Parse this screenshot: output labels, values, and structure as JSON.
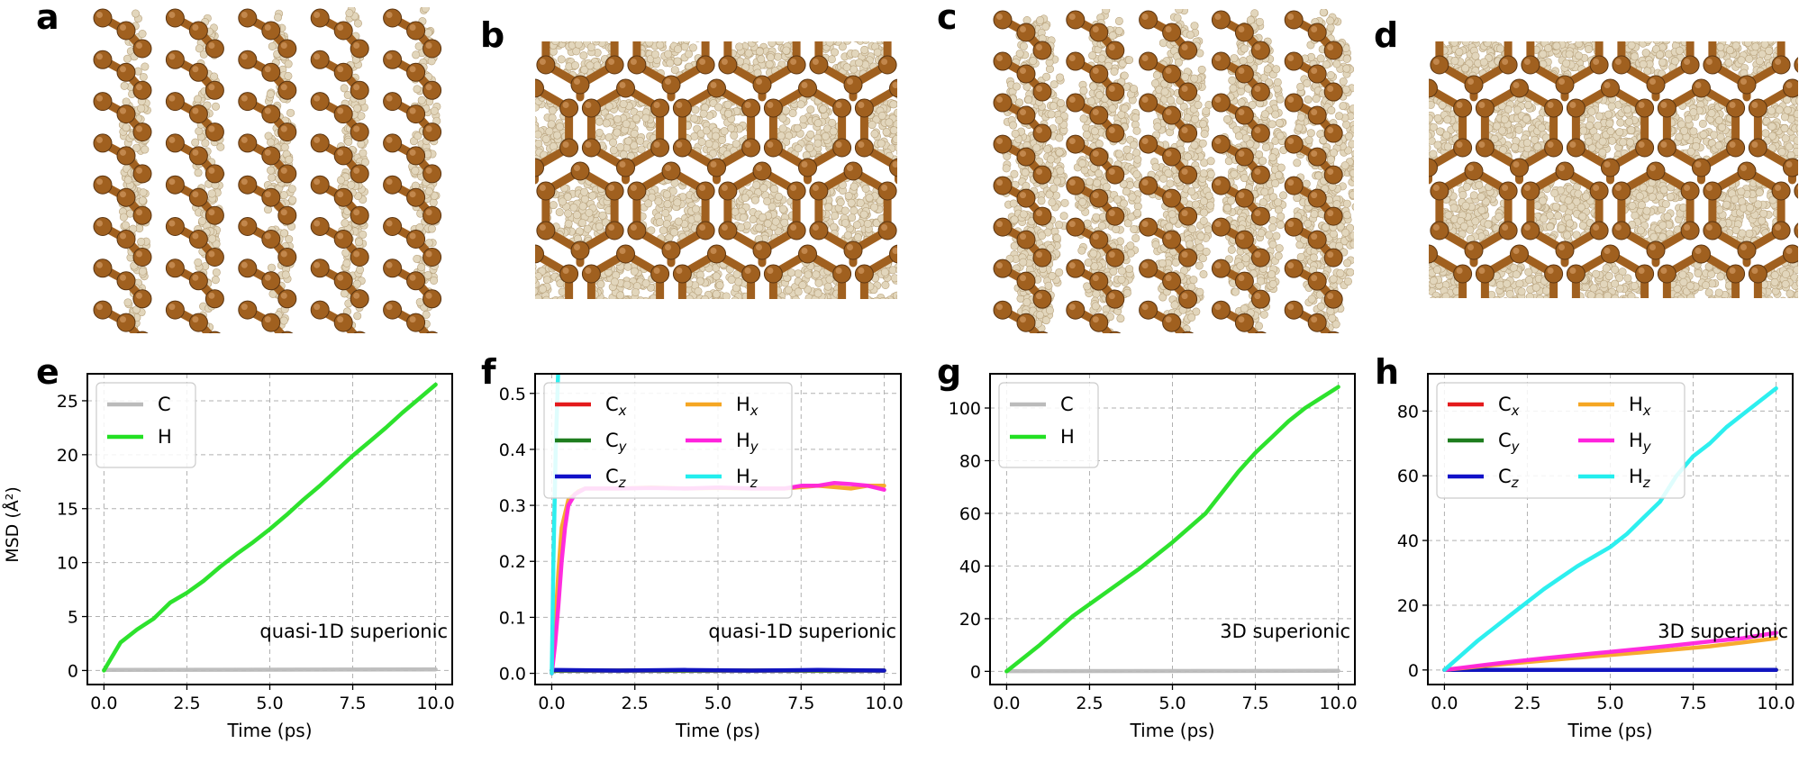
{
  "panels": {
    "a": "a",
    "b": "b",
    "c": "c",
    "d": "d",
    "e": "e",
    "f": "f",
    "g": "g",
    "h": "h"
  },
  "colors": {
    "carbon": "#a0601f",
    "hydrogen": "#e2d6bc",
    "C": "#bbbbbb",
    "H": "#22e022",
    "Cx": "#e41a1c",
    "Cy": "#1e7d1e",
    "Cz": "#1010c8",
    "Hx": "#f5a623",
    "Hy": "#ff22dd",
    "Hz": "#22eeee"
  },
  "chart_data": [
    {
      "id": "e",
      "type": "line",
      "xlabel": "Time (ps)",
      "ylabel": "MSD (Å²)",
      "xlim": [
        -0.5,
        10.5
      ],
      "ylim": [
        -1.3,
        27.5
      ],
      "xticks": [
        "0.0",
        "2.5",
        "5.0",
        "7.5",
        "10.0"
      ],
      "yticks": [
        "0",
        "5",
        "10",
        "15",
        "20",
        "25"
      ],
      "annotation": "quasi-1D superionic",
      "legend": "top-left",
      "legend_cols": 1,
      "series": [
        {
          "name": "C",
          "color_key": "C",
          "x": [
            0,
            10
          ],
          "y": [
            0.05,
            0.1
          ]
        },
        {
          "name": "H",
          "color_key": "H",
          "x": [
            0,
            0.5,
            1,
            1.5,
            2,
            2.5,
            3,
            3.5,
            4,
            4.5,
            5,
            5.5,
            6,
            6.5,
            7,
            7.5,
            8,
            8.5,
            9,
            9.5,
            10
          ],
          "y": [
            0,
            2.6,
            3.8,
            4.8,
            6.3,
            7.2,
            8.3,
            9.6,
            10.8,
            11.9,
            13.1,
            14.4,
            15.8,
            17.1,
            18.5,
            19.9,
            21.2,
            22.5,
            23.9,
            25.2,
            26.5
          ]
        }
      ]
    },
    {
      "id": "f",
      "type": "line",
      "xlabel": "Time (ps)",
      "ylabel": "",
      "xlim": [
        -0.5,
        10.5
      ],
      "ylim": [
        -0.02,
        0.535
      ],
      "xticks": [
        "0.0",
        "2.5",
        "5.0",
        "7.5",
        "10.0"
      ],
      "yticks": [
        "0.0",
        "0.1",
        "0.2",
        "0.3",
        "0.4",
        "0.5"
      ],
      "annotation": "quasi-1D superionic",
      "legend": "top-left",
      "legend_cols": 2,
      "series": [
        {
          "name": "C",
          "sub": "x",
          "color_key": "Cx",
          "x": [
            0,
            10
          ],
          "y": [
            0.005,
            0.005
          ]
        },
        {
          "name": "C",
          "sub": "y",
          "color_key": "Cy",
          "x": [
            0,
            10
          ],
          "y": [
            0.005,
            0.005
          ]
        },
        {
          "name": "C",
          "sub": "z",
          "color_key": "Cz",
          "x": [
            0,
            2,
            4,
            6,
            8,
            10
          ],
          "y": [
            0.006,
            0.005,
            0.006,
            0.005,
            0.006,
            0.005
          ]
        },
        {
          "name": "H",
          "sub": "x",
          "color_key": "Hx",
          "x": [
            0,
            0.1,
            0.2,
            0.3,
            0.5,
            0.8,
            1,
            2,
            3,
            4,
            5,
            6,
            7,
            8,
            9,
            9.5,
            10
          ],
          "y": [
            0,
            0.08,
            0.18,
            0.26,
            0.31,
            0.325,
            0.33,
            0.33,
            0.332,
            0.33,
            0.331,
            0.33,
            0.33,
            0.335,
            0.33,
            0.335,
            0.335
          ]
        },
        {
          "name": "H",
          "sub": "y",
          "color_key": "Hy",
          "x": [
            0,
            0.1,
            0.2,
            0.3,
            0.4,
            0.5,
            0.7,
            1,
            2,
            3,
            4,
            5,
            6,
            7,
            7.5,
            8,
            8.5,
            9,
            9.5,
            10
          ],
          "y": [
            0,
            0.05,
            0.12,
            0.2,
            0.26,
            0.3,
            0.32,
            0.33,
            0.33,
            0.331,
            0.33,
            0.332,
            0.33,
            0.33,
            0.335,
            0.335,
            0.34,
            0.338,
            0.335,
            0.328
          ]
        },
        {
          "name": "H",
          "sub": "z",
          "color_key": "Hz",
          "x": [
            0,
            0.05,
            0.12,
            0.2,
            0.25
          ],
          "y": [
            0,
            0.2,
            0.4,
            0.55,
            0.6
          ]
        }
      ]
    },
    {
      "id": "g",
      "type": "line",
      "xlabel": "Time (ps)",
      "ylabel": "",
      "xlim": [
        -0.5,
        10.5
      ],
      "ylim": [
        -5,
        113
      ],
      "xticks": [
        "0.0",
        "2.5",
        "5.0",
        "7.5",
        "10.0"
      ],
      "yticks": [
        "0",
        "20",
        "40",
        "60",
        "80",
        "100"
      ],
      "annotation": "3D superionic",
      "legend": "top-left",
      "legend_cols": 1,
      "series": [
        {
          "name": "C",
          "color_key": "C",
          "x": [
            0,
            10
          ],
          "y": [
            0.1,
            0.2
          ]
        },
        {
          "name": "H",
          "color_key": "H",
          "x": [
            0,
            1,
            2,
            3,
            4,
            5,
            6,
            6.5,
            7,
            7.5,
            8,
            8.5,
            9,
            9.5,
            10
          ],
          "y": [
            0,
            10,
            21,
            30,
            39,
            49,
            60,
            68,
            76,
            83,
            89,
            95,
            100,
            104,
            108
          ]
        }
      ]
    },
    {
      "id": "h",
      "type": "line",
      "xlabel": "Time (ps)",
      "ylabel": "",
      "xlim": [
        -0.5,
        10.5
      ],
      "ylim": [
        -4.5,
        91.5
      ],
      "xticks": [
        "0.0",
        "2.5",
        "5.0",
        "7.5",
        "10.0"
      ],
      "yticks": [
        "0",
        "20",
        "40",
        "60",
        "80"
      ],
      "annotation": "3D superionic",
      "legend": "top-left",
      "legend_cols": 2,
      "series": [
        {
          "name": "C",
          "sub": "x",
          "color_key": "Cx",
          "x": [
            0,
            10
          ],
          "y": [
            0,
            0
          ]
        },
        {
          "name": "C",
          "sub": "y",
          "color_key": "Cy",
          "x": [
            0,
            10
          ],
          "y": [
            0,
            0
          ]
        },
        {
          "name": "C",
          "sub": "z",
          "color_key": "Cz",
          "x": [
            0,
            10
          ],
          "y": [
            0,
            0
          ]
        },
        {
          "name": "H",
          "sub": "x",
          "color_key": "Hx",
          "x": [
            0,
            2,
            4,
            6,
            8,
            9,
            10
          ],
          "y": [
            0,
            2,
            3.8,
            5.5,
            7.3,
            8.5,
            9.8
          ]
        },
        {
          "name": "H",
          "sub": "y",
          "color_key": "Hy",
          "x": [
            0,
            1,
            2,
            3,
            4,
            5,
            6,
            7,
            8,
            9,
            10
          ],
          "y": [
            0,
            1.3,
            2.5,
            3.6,
            4.6,
            5.6,
            6.6,
            7.7,
            8.8,
            9.8,
            11.5
          ]
        },
        {
          "name": "H",
          "sub": "z",
          "color_key": "Hz",
          "x": [
            0,
            0.5,
            1,
            2,
            3,
            4,
            5,
            5.5,
            6,
            6.5,
            7,
            7.5,
            8,
            8.5,
            9,
            9.5,
            10
          ],
          "y": [
            0,
            4.5,
            9,
            17,
            25,
            32,
            38,
            42,
            47,
            52,
            60,
            66,
            70,
            75,
            79,
            83,
            87
          ]
        }
      ]
    }
  ]
}
